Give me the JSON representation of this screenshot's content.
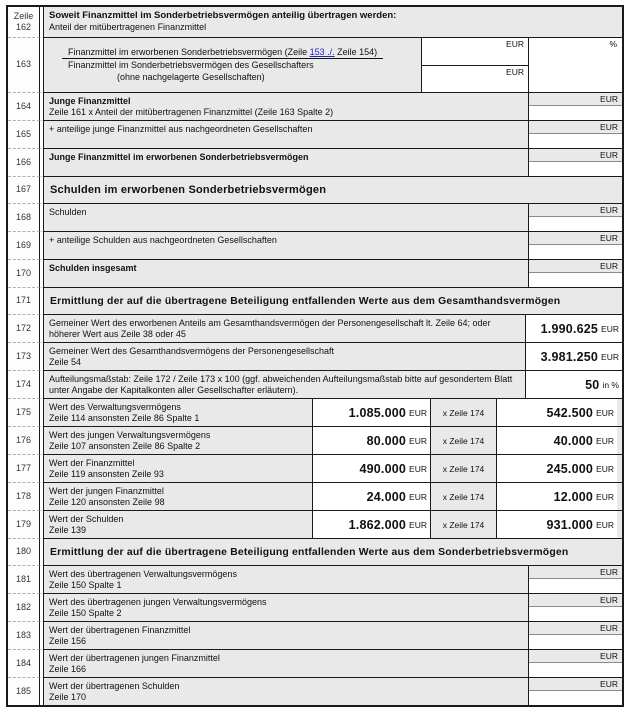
{
  "form": {
    "gutter_header": "Zeile",
    "rows": [
      {
        "zeile": "162",
        "type": "header",
        "line1": "Soweit Finanzmittel im Sonderbetriebsvermögen anteilig übertragen werden:",
        "line2": "Anteil der mitübertragenen Finanzmittel"
      },
      {
        "zeile": "163",
        "type": "fraction",
        "num_pre": "Finanzmittel im erworbenen Sonderbetriebsvermögen (Zeile ",
        "num_link": "153 ./.",
        "num_post": " Zeile 154)",
        "den1": "Finanzmittel im Sonderbetriebsvermögen des Gesellschafters",
        "den2": "(ohne nachgelagerte Gesellschaften)",
        "unit_top": "EUR",
        "unit_bottom": "EUR",
        "unit_pct": "%"
      },
      {
        "zeile": "164",
        "type": "eur",
        "bold": true,
        "label": "Junge Finanzmittel",
        "sub": "Zeile 161 x Anteil der mitübertragenen Finanzmittel (Zeile 163 Spalte 2)",
        "unit": "EUR"
      },
      {
        "zeile": "165",
        "type": "eur",
        "label": "+ anteilige junge Finanzmittel aus nachgeordneten Gesellschaften",
        "unit": "EUR"
      },
      {
        "zeile": "166",
        "type": "eur",
        "bold": true,
        "label": "Junge Finanzmittel im erworbenen Sonderbetriebsvermögen",
        "unit": "EUR"
      },
      {
        "zeile": "167",
        "type": "section",
        "title": "Schulden im erworbenen Sonderbetriebsvermögen",
        "size": "large"
      },
      {
        "zeile": "168",
        "type": "eur",
        "label": "Schulden",
        "unit": "EUR"
      },
      {
        "zeile": "169",
        "type": "eur",
        "label": "+ anteilige Schulden aus nachgeordneten Gesellschaften",
        "unit": "EUR"
      },
      {
        "zeile": "170",
        "type": "eur",
        "bold": true,
        "label": "Schulden insgesamt",
        "unit": "EUR"
      },
      {
        "zeile": "171",
        "type": "section",
        "title": "Ermittlung der auf die übertragene Beteiligung entfallenden Werte aus dem Gesamthandsvermögen",
        "size": "small"
      },
      {
        "zeile": "172",
        "type": "value",
        "label": "Gemeiner Wert des erworbenen Anteils am Gesamthandsvermögen der Personengesellschaft lt. Zeile 64; oder höherer Wert aus Zeile 38 oder 45",
        "value": "1.990.625",
        "unit": "EUR"
      },
      {
        "zeile": "173",
        "type": "value",
        "label": "Gemeiner Wert des Gesamthandsvermögens der Personengesellschaft",
        "sub": "Zeile 54",
        "value": "3.981.250",
        "unit": "EUR"
      },
      {
        "zeile": "174",
        "type": "value",
        "label": "Aufteilungsmaßstab: Zeile 172 / Zeile 173 x 100 (ggf. abweichenden Aufteilungsmaßstab bitte auf gesondertem Blatt unter Angabe der Kapitalkonten aller Gesellschafter erläutern).",
        "value": "50",
        "unit": "in %"
      },
      {
        "zeile": "175",
        "type": "calc",
        "label": "Wert des Verwaltungsvermögens",
        "sub": "Zeile 114 ansonsten Zeile 86 Spalte 1",
        "v1": "1.085.000",
        "op": "x Zeile 174",
        "v2": "542.500",
        "unit": "EUR"
      },
      {
        "zeile": "176",
        "type": "calc",
        "label": "Wert des jungen Verwaltungsvermögens",
        "sub": "Zeile 107 ansonsten Zeile 86 Spalte 2",
        "v1": "80.000",
        "op": "x Zeile 174",
        "v2": "40.000",
        "unit": "EUR"
      },
      {
        "zeile": "177",
        "type": "calc",
        "label": "Wert der Finanzmittel",
        "sub": "Zeile 119 ansonsten Zeile 93",
        "v1": "490.000",
        "op": "x Zeile 174",
        "v2": "245.000",
        "unit": "EUR"
      },
      {
        "zeile": "178",
        "type": "calc",
        "label": "Wert der jungen Finanzmittel",
        "sub": "Zeile 120 ansonsten Zeile 98",
        "v1": "24.000",
        "op": "x Zeile 174",
        "v2": "12.000",
        "unit": "EUR"
      },
      {
        "zeile": "179",
        "type": "calc",
        "label": "Wert der Schulden",
        "sub": "Zeile 139",
        "v1": "1.862.000",
        "op": "x Zeile 174",
        "v2": "931.000",
        "unit": "EUR"
      },
      {
        "zeile": "180",
        "type": "section",
        "title": "Ermittlung der auf die übertragene Beteiligung entfallenden Werte aus dem Sonderbetriebsvermögen",
        "size": "small"
      },
      {
        "zeile": "181",
        "type": "eur",
        "label": "Wert des übertragenen Verwaltungsvermögens",
        "sub": "Zeile 150 Spalte 1",
        "unit": "EUR"
      },
      {
        "zeile": "182",
        "type": "eur",
        "label": "Wert des übertragenen jungen Verwaltungsvermögens",
        "sub": "Zeile 150 Spalte 2",
        "unit": "EUR"
      },
      {
        "zeile": "183",
        "type": "eur",
        "label": "Wert der übertragenen Finanzmittel",
        "sub": "Zeile 156",
        "unit": "EUR"
      },
      {
        "zeile": "184",
        "type": "eur",
        "label": "Wert der übertragenen jungen Finanzmittel",
        "sub": "Zeile 166",
        "unit": "EUR"
      },
      {
        "zeile": "185",
        "type": "eur",
        "label": "Wert der übertragenen Schulden",
        "sub": "Zeile 170",
        "unit": "EUR"
      }
    ]
  }
}
